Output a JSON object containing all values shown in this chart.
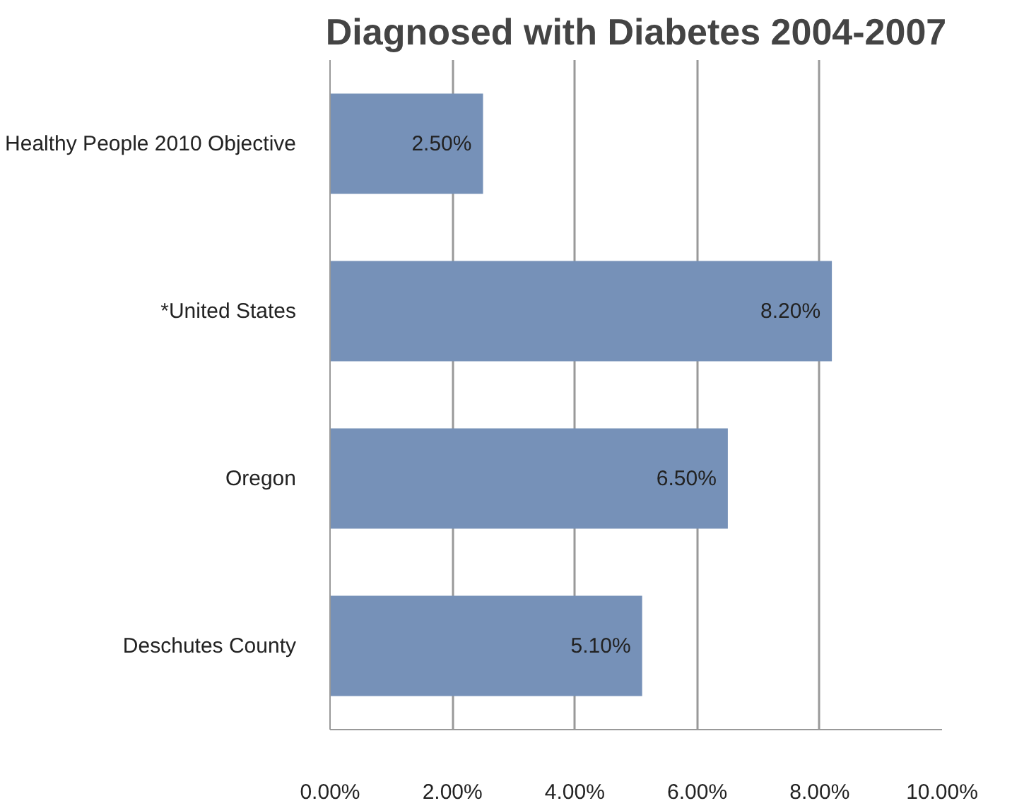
{
  "chart_data": {
    "type": "bar",
    "orientation": "horizontal",
    "title": "Diagnosed with Diabetes 2004-2007",
    "categories": [
      "Healthy People 2010 Objective",
      "*United States",
      "Oregon",
      "Deschutes County"
    ],
    "values": [
      2.5,
      8.2,
      6.5,
      5.1
    ],
    "value_labels": [
      "2.50%",
      "8.20%",
      "6.50%",
      "5.10%"
    ],
    "color": "#7691b8",
    "xlim": [
      0,
      10
    ],
    "xticks": [
      {
        "value": 0,
        "label": "0.00%"
      },
      {
        "value": 2,
        "label": "2.00%"
      },
      {
        "value": 4,
        "label": "4.00%"
      },
      {
        "value": 6,
        "label": "6.00%"
      },
      {
        "value": 8,
        "label": "8.00%"
      },
      {
        "value": 10,
        "label": "10.00%"
      }
    ],
    "grid": "x"
  }
}
